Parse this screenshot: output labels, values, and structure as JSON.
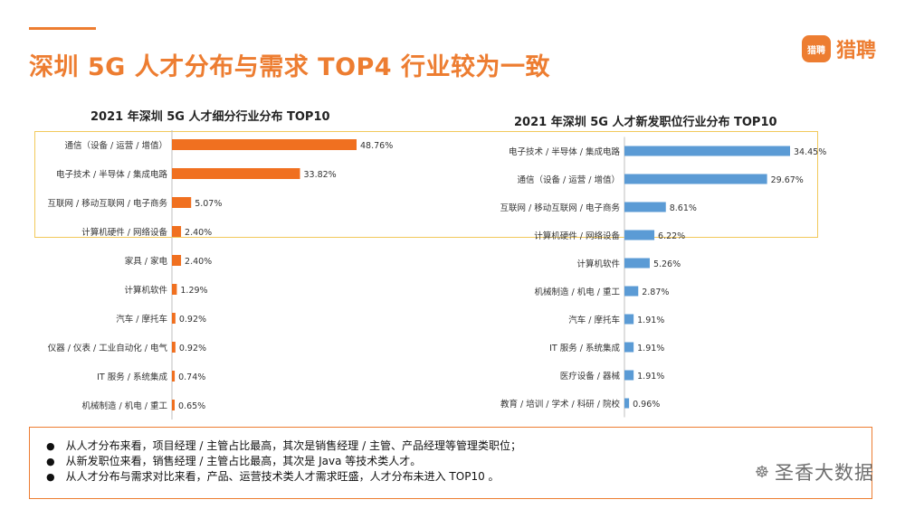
{
  "slide": {
    "title": "深圳 5G 人才分布与需求 TOP4 行业较为一致"
  },
  "brand": {
    "icon_text": "猎聘",
    "name": "猎聘",
    "color": "#ed7d31"
  },
  "watermark": {
    "icon": "wechat-icon",
    "text": "圣香大数据"
  },
  "summary": [
    "从人才分布来看，项目经理 / 主管占比最高，其次是销售经理 / 主管、产品经理等管理类职位；",
    "从新发职位来看，销售经理 / 主管占比最高，其次是 Java 等技术类人才。",
    "从人才分布与需求对比来看，产品、运营技术类人才需求旺盛，人才分布未进入 TOP10 。"
  ],
  "chart_data": [
    {
      "type": "bar",
      "orientation": "horizontal",
      "title": "2021 年深圳 5G 人才细分行业分布 TOP10",
      "color": "#f07020",
      "categories": [
        "通信（设备 / 运营 / 增值）",
        "电子技术 / 半导体 / 集成电路",
        "互联网 / 移动互联网 / 电子商务",
        "计算机硬件 / 网络设备",
        "家具 / 家电",
        "计算机软件",
        "汽车 / 摩托车",
        "仪器 / 仪表 / 工业自动化 / 电气",
        "IT 服务 / 系统集成",
        "机械制造 / 机电 / 重工"
      ],
      "values": [
        48.76,
        33.82,
        5.07,
        2.4,
        2.4,
        1.29,
        0.92,
        0.92,
        0.74,
        0.65
      ],
      "labels": [
        "48.76%",
        "33.82%",
        "5.07%",
        "2.40%",
        "2.40%",
        "1.29%",
        "0.92%",
        "0.92%",
        "0.74%",
        "0.65%"
      ]
    },
    {
      "type": "bar",
      "orientation": "horizontal",
      "title": "2021 年深圳 5G 人才新发职位行业分布 TOP10",
      "color": "#5b9bd5",
      "categories": [
        "电子技术 / 半导体 / 集成电路",
        "通信（设备 / 运营 / 增值）",
        "互联网 / 移动互联网 / 电子商务",
        "计算机硬件 / 网络设备",
        "计算机软件",
        "机械制造 / 机电 / 重工",
        "汽车 / 摩托车",
        "IT 服务 / 系统集成",
        "医疗设备 / 器械",
        "教育 / 培训 / 学术 / 科研 / 院校"
      ],
      "values": [
        34.45,
        29.67,
        8.61,
        6.22,
        5.26,
        2.87,
        1.91,
        1.91,
        1.91,
        0.96
      ],
      "labels": [
        "34.45%",
        "29.67%",
        "8.61%",
        "6.22%",
        "5.26%",
        "2.87%",
        "1.91%",
        "1.91%",
        "1.91%",
        "0.96%"
      ]
    }
  ]
}
